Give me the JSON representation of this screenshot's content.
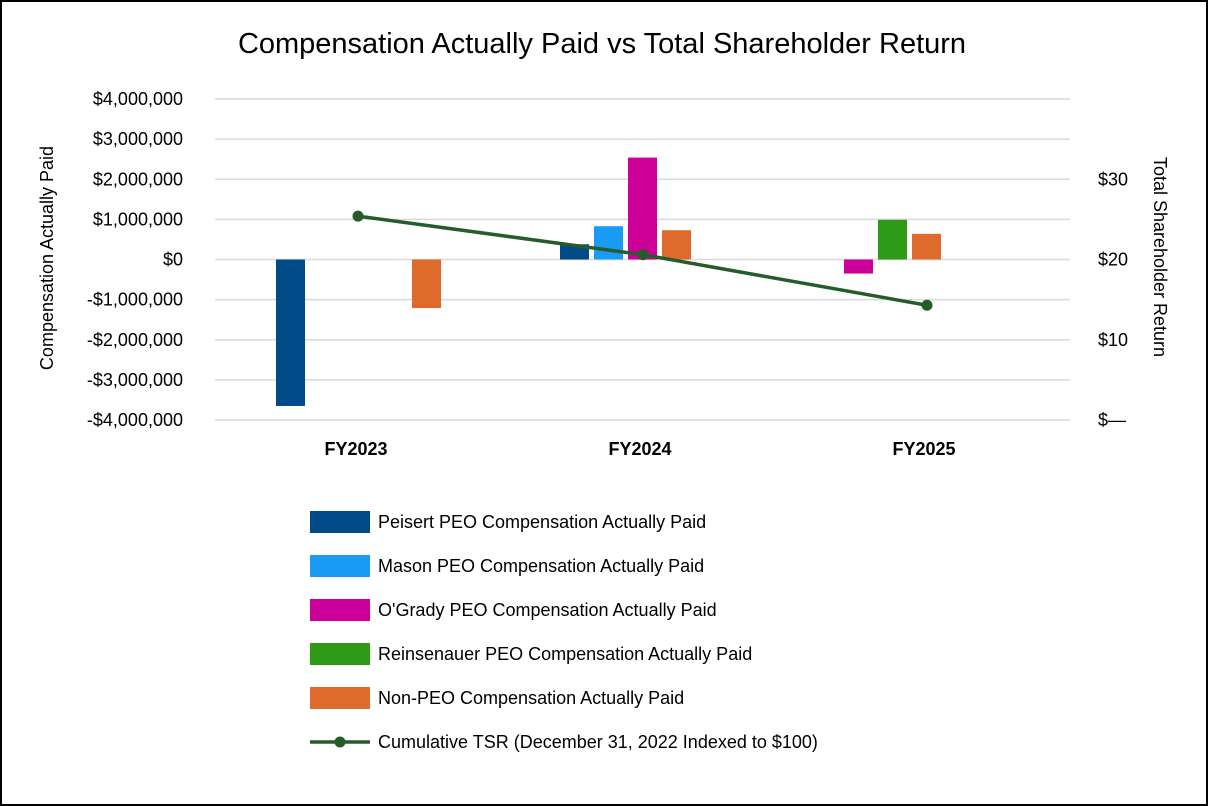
{
  "chart_data": {
    "type": "bar",
    "title": "Compensation Actually Paid vs Total Shareholder Return",
    "categories": [
      "FY2023",
      "FY2024",
      "FY2025"
    ],
    "ylabel": "Compensation Actually Paid",
    "y2label": "Total Shareholder Return",
    "ylim": [
      -4000000,
      4000000
    ],
    "y2lim": [
      0,
      40
    ],
    "yticks": [
      "$4,000,000",
      "$3,000,000",
      "$2,000,000",
      "$1,000,000",
      "$0",
      "-$1,000,000",
      "-$2,000,000",
      "-$3,000,000",
      "-$4,000,000"
    ],
    "y2ticks": [
      "$30",
      "$20",
      "$10",
      "$—"
    ],
    "series": [
      {
        "name": "Peisert PEO Compensation Actually Paid",
        "color": "#004b87",
        "values": [
          -3650000,
          380000,
          null
        ]
      },
      {
        "name": "Mason PEO Compensation Actually Paid",
        "color": "#1a9cf4",
        "values": [
          null,
          830000,
          null
        ]
      },
      {
        "name": "O'Grady PEO Compensation Actually Paid",
        "color": "#cc0099",
        "values": [
          null,
          2540000,
          -350000
        ]
      },
      {
        "name": "Reinsenauer PEO Compensation Actually Paid",
        "color": "#2e9a16",
        "values": [
          null,
          null,
          990000
        ]
      },
      {
        "name": "Non-PEO Compensation Actually Paid",
        "color": "#de6a2c",
        "values": [
          -1210000,
          730000,
          640000
        ]
      }
    ],
    "line_series": {
      "name": "Cumulative TSR (December 31, 2022 Indexed to $100)",
      "color": "#265b2a",
      "axis": "right",
      "values": [
        25.4,
        20.6,
        14.3
      ]
    },
    "grid": true,
    "legend_position": "bottom"
  }
}
